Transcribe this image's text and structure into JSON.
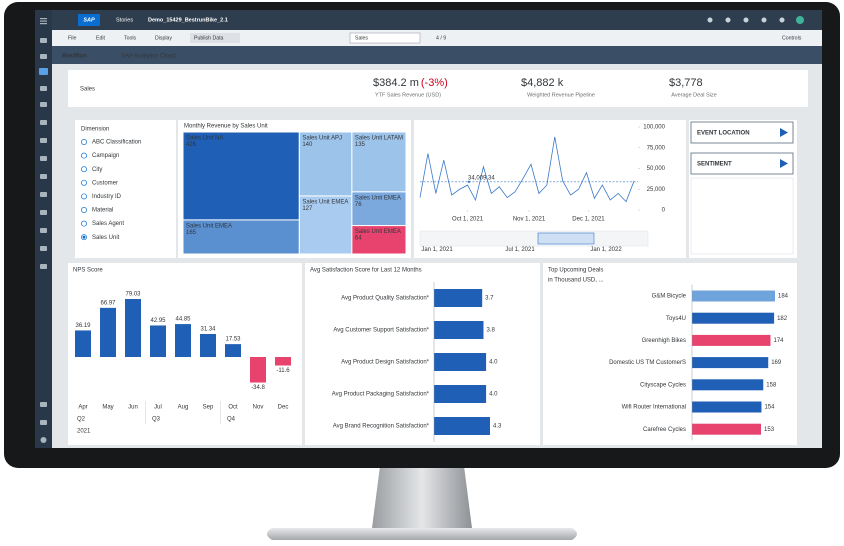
{
  "toolbar": {
    "logo": "SAP",
    "section": "Stories",
    "story_name": "Demo_15429_BestrunBike_2.1",
    "menus": [
      "File",
      "Edit",
      "Tools",
      "Display"
    ],
    "publish": "Publish Data",
    "page_select": "Sales",
    "page_counter": "4 / 9",
    "controls": "Controls"
  },
  "brand": {
    "name": "BestRun",
    "product": "SAP Analytics Cloud"
  },
  "header": {
    "title": "Sales",
    "kpis": [
      {
        "value": "$384.2 m",
        "delta": "(-3%)",
        "label": "YTF Sales Revenue (USD)"
      },
      {
        "value": "$4,882 k",
        "label": "Weighted Revenue Pipeline"
      },
      {
        "value": "$3,778",
        "label": "Average Deal Size"
      }
    ]
  },
  "dimension": {
    "title": "Dimension",
    "options": [
      "ABC Classification",
      "Campaign",
      "City",
      "Customer",
      "Industry ID",
      "Material",
      "Sales Agent",
      "Sales Unit"
    ],
    "selected": 7
  },
  "buttons": [
    "EVENT LOCATION",
    "SENTIMENT"
  ],
  "chart_data": [
    {
      "type": "treemap",
      "title": "Monthly Revenue by Sales Unit",
      "categories": [
        "Sales Unit NA",
        "Sales Unit APJ",
        "Sales Unit LATAM",
        "Sales Unit EMEA",
        "Sales Unit EMEA",
        "Sales Unit EMEA",
        "Sales Unit EMEA"
      ],
      "values": [
        426,
        140,
        135,
        165,
        127,
        76,
        64
      ],
      "colors": [
        "#1f5fb5",
        "#9cc3ea",
        "#9cc3ea",
        "#5a8fd0",
        "#a9cbef",
        "#7ba9de",
        "#e8436e"
      ]
    },
    {
      "type": "line",
      "x": [
        "2021-09-07",
        "2021-09-11",
        "2021-09-15",
        "2021-09-19",
        "2021-09-23",
        "2021-09-27",
        "2021-10-01",
        "2021-10-05",
        "2021-10-09",
        "2021-10-13",
        "2021-10-17",
        "2021-10-21",
        "2021-10-25",
        "2021-10-29",
        "2021-11-02",
        "2021-11-06",
        "2021-11-10",
        "2021-11-14",
        "2021-11-18",
        "2021-11-22",
        "2021-11-26",
        "2021-11-30",
        "2021-12-04",
        "2021-12-08",
        "2021-12-12",
        "2021-12-16",
        "2021-12-20",
        "2021-12-24"
      ],
      "values": [
        15000,
        68000,
        20000,
        60000,
        18000,
        25000,
        30000,
        12000,
        52000,
        20000,
        28000,
        15000,
        22000,
        38000,
        55000,
        20000,
        30000,
        88000,
        35000,
        18000,
        25000,
        45000,
        14000,
        30000,
        12000,
        20000,
        10000,
        35000
      ],
      "color": "#3a78c9",
      "xlim": [
        "2021-09-07",
        "2021-12-26"
      ],
      "xticks": [
        {
          "value": "2021-10-01",
          "label": "Oct 1, 2021"
        },
        {
          "value": "2021-11-01",
          "label": "Nov 1, 2021"
        },
        {
          "value": "2021-12-01",
          "label": "Dec 1, 2021"
        }
      ],
      "ylim": [
        0,
        100000
      ],
      "yticks": [
        0,
        {
          "value": 25000,
          "label": "25,000"
        },
        {
          "value": 50000,
          "label": "50,000"
        },
        {
          "value": 75000,
          "label": "75,000"
        },
        {
          "value": 100000,
          "label": "100,000"
        }
      ],
      "annotation": {
        "value": 34009.34,
        "label": "34,009.34"
      },
      "navigator_labels": [
        "Jan 1, 2021",
        "Jul 1, 2021",
        "Jan 1, 2022"
      ]
    },
    {
      "type": "bar",
      "title": "NPS Score",
      "categories": [
        "Apr",
        "May",
        "Jun",
        "Jul",
        "Aug",
        "Sep",
        "Oct",
        "Nov",
        "Dec"
      ],
      "quarters": [
        "Q2",
        null,
        null,
        "Q3",
        null,
        null,
        "Q4",
        null,
        null
      ],
      "years": [
        "2021",
        null,
        null,
        null,
        null,
        null,
        null,
        null,
        null
      ],
      "values": [
        36.19,
        66.97,
        79.03,
        42.95,
        44.85,
        31.34,
        17.53,
        -34.8,
        -11.6
      ],
      "color": "#1f5fb5",
      "negative_color": "#e8436e"
    },
    {
      "type": "hbar",
      "title": "Avg Satisfaction Score for Last 12 Months",
      "categories": [
        "Avg Product Quality Satisfaction*",
        "Avg Customer Support Satisfaction*",
        "Avg Product Design Satisfaction*",
        "Avg Product Packaging Satisfaction*",
        "Avg Brand Recognition Satisfaction*"
      ],
      "values": [
        3.7,
        3.8,
        4.0,
        4.0,
        4.3
      ],
      "value_labels": [
        "3.7",
        "3.8",
        "4.0",
        "4.0",
        "4.3"
      ],
      "color": "#1f5fb5"
    },
    {
      "type": "hbar",
      "title": "Top Upcoming Deals",
      "subtitle": "in Thousand USD, ...",
      "categories": [
        "G&M Bicycle",
        "Toys4U",
        "Greenhigh Bikes",
        "Domestic US TM CustomerS",
        "Cityscape Cycles",
        "Wifi Router International",
        "Carefree Cycles"
      ],
      "values": [
        184,
        182,
        174,
        169,
        158,
        154,
        153
      ],
      "colors": [
        "#6fa3dc",
        "#1f5fb5",
        "#e8436e",
        "#1f5fb5",
        "#1f5fb5",
        "#1f5fb5",
        "#e8436e"
      ]
    }
  ]
}
